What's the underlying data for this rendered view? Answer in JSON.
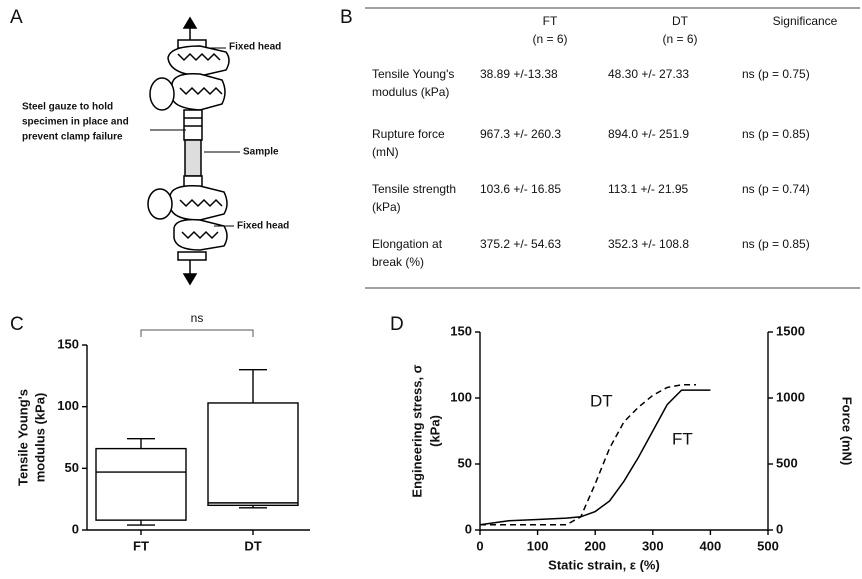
{
  "panels": [
    "A",
    "B",
    "C",
    "D"
  ],
  "diagram": {
    "top_label": "Fixed head",
    "gauze_label": [
      "Steel gauze to hold",
      "specimen in place and",
      "prevent clamp failure"
    ],
    "sample_label": "Sample",
    "bottom_label": "Fixed head"
  },
  "table": {
    "columns": [
      [
        "FT",
        "(n = 6)"
      ],
      [
        "DT",
        "(n = 6)"
      ],
      [
        "Significance"
      ]
    ],
    "rows": [
      {
        "label": [
          "Tensile Young's",
          "modulus (kPa)"
        ],
        "cells": [
          "38.89 +/-13.38",
          "48.30 +/- 27.33",
          "ns (p = 0.75)"
        ]
      },
      {
        "label": [
          "Rupture force",
          "(mN)"
        ],
        "cells": [
          "967.3 +/- 260.3",
          "894.0 +/- 251.9",
          "ns (p = 0.85)"
        ]
      },
      {
        "label": [
          "Tensile strength",
          "(kPa)"
        ],
        "cells": [
          "103.6 +/- 16.85",
          "113.1 +/- 21.95",
          "ns (p = 0.74)"
        ]
      },
      {
        "label": [
          "Elongation at",
          "break (%)"
        ],
        "cells": [
          "375.2 +/- 54.63",
          "352.3 +/- 108.8",
          "ns (p = 0.85)"
        ]
      }
    ]
  },
  "chart_data": [
    {
      "type": "box",
      "ylabel": [
        "Tensile Young's",
        "modulus (kPa)"
      ],
      "categories": [
        "FT",
        "DT"
      ],
      "min": [
        4,
        18
      ],
      "q1": [
        8,
        20
      ],
      "median": [
        47,
        22
      ],
      "q3": [
        66,
        103
      ],
      "max": [
        74,
        130
      ],
      "annotation": "ns",
      "ylim": [
        0,
        150
      ],
      "yticks": [
        0,
        50,
        100,
        150
      ],
      "color": "#000"
    },
    {
      "type": "line",
      "xlabel": "Static strain, ε (%)",
      "ylabel": [
        "Engineering stress, σ",
        "(kPa)"
      ],
      "y2label": "Force (mN)",
      "xlim": [
        0,
        500
      ],
      "xticks": [
        0,
        100,
        200,
        300,
        400,
        500
      ],
      "ylim": [
        0,
        150
      ],
      "yticks": [
        0,
        50,
        100,
        150
      ],
      "y2lim": [
        0,
        1500
      ],
      "y2ticks": [
        0,
        500,
        1000,
        1500
      ],
      "series": [
        {
          "name": "FT",
          "color": "#000",
          "dash": false,
          "x": [
            0,
            50,
            100,
            150,
            175,
            200,
            225,
            250,
            275,
            300,
            325,
            350,
            375,
            400
          ],
          "values": [
            4,
            7,
            8,
            9,
            10,
            14,
            22,
            37,
            55,
            75,
            95,
            106,
            106,
            106
          ]
        },
        {
          "name": "DT",
          "color": "#000",
          "dash": true,
          "x": [
            0,
            50,
            100,
            150,
            175,
            200,
            225,
            250,
            275,
            300,
            325,
            350,
            375
          ],
          "values": [
            4,
            4,
            4,
            4,
            10,
            35,
            62,
            82,
            93,
            102,
            108,
            110,
            110
          ]
        }
      ]
    }
  ]
}
